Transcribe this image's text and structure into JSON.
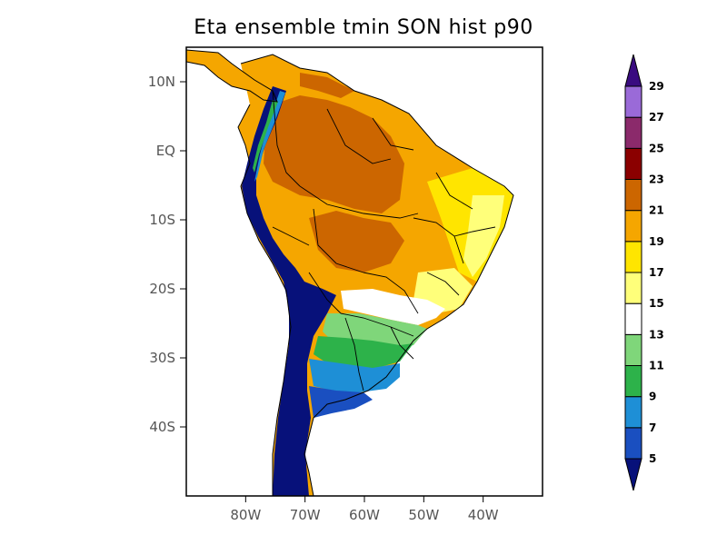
{
  "title": "Eta ensemble tmin SON hist p90",
  "map": {
    "lon_range": [
      -90,
      -30
    ],
    "lat_range": [
      -50,
      15
    ],
    "x_ticks": [
      {
        "lon": -80,
        "label": "80W"
      },
      {
        "lon": -70,
        "label": "70W"
      },
      {
        "lon": -60,
        "label": "60W"
      },
      {
        "lon": -50,
        "label": "50W"
      },
      {
        "lon": -40,
        "label": "40W"
      }
    ],
    "y_ticks": [
      {
        "lat": 10,
        "label": "10N"
      },
      {
        "lat": 0,
        "label": "EQ"
      },
      {
        "lat": -10,
        "label": "10S"
      },
      {
        "lat": -20,
        "label": "20S"
      },
      {
        "lat": -30,
        "label": "30S"
      },
      {
        "lat": -40,
        "label": "40S"
      }
    ]
  },
  "colorbar": {
    "levels": [
      "5",
      "7",
      "9",
      "11",
      "13",
      "15",
      "17",
      "19",
      "21",
      "23",
      "25",
      "27",
      "29"
    ],
    "colors": {
      "below_5": "#07117a",
      "5_7": "#1a4fc0",
      "7_9": "#1e8fd6",
      "9_11": "#2db24a",
      "11_13": "#7fd67a",
      "13_15": "#ffffff",
      "15_17": "#ffff7a",
      "17_19": "#ffe500",
      "19_21": "#f5a600",
      "21_23": "#cc6600",
      "23_25": "#8b0000",
      "25_27": "#8b2a6b",
      "27_29": "#9a6ad8",
      "above_29": "#3a0b80"
    }
  }
}
